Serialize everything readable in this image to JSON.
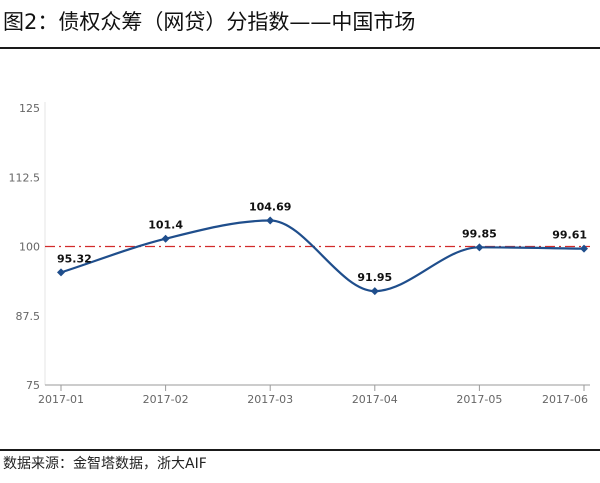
{
  "figure": {
    "title": "图2：债权众筹（网贷）分指数——中国市场",
    "source": "数据来源：金智塔数据，浙大AIF"
  },
  "chart_data": {
    "type": "line",
    "categories": [
      "2017-01",
      "2017-02",
      "2017-03",
      "2017-04",
      "2017-05",
      "2017-06"
    ],
    "series": [
      {
        "values": [
          95.32,
          101.4,
          104.69,
          91.95,
          99.85,
          99.61
        ]
      }
    ],
    "data_labels": [
      "95.32",
      "101.4",
      "104.69",
      "91.95",
      "99.85",
      "99.61"
    ],
    "y_ticks": [
      75,
      87.5,
      100,
      112.5,
      125
    ],
    "y_tick_labels": [
      "75",
      "87.5",
      "100",
      "112.5",
      "125"
    ],
    "ylim": [
      75,
      125
    ],
    "reference_line": {
      "value": 100,
      "style": "dash-dot",
      "color": "#d22b2b"
    },
    "grid": false,
    "line_color": "#1f4e8c",
    "marker": "diamond",
    "smooth": true
  }
}
